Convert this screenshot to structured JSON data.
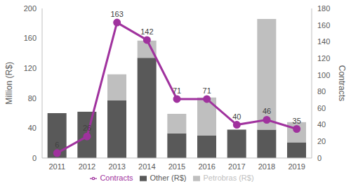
{
  "chart_data": {
    "type": "bar",
    "categories": [
      "2011",
      "2012",
      "2013",
      "2014",
      "2015",
      "2016",
      "2017",
      "2018",
      "2019"
    ],
    "series": [
      {
        "name": "Other (R$)",
        "type": "bar",
        "color": "#595959",
        "values": [
          60,
          62,
          77,
          134,
          33,
          30,
          38,
          38,
          21
        ]
      },
      {
        "name": "Petrobras (R$)",
        "type": "bar",
        "color": "#bfbfbf",
        "values": [
          0,
          0,
          35,
          23,
          26,
          51,
          0,
          148,
          27
        ]
      },
      {
        "name": "Contracts",
        "type": "line",
        "axis": "y2",
        "color": "#a0329e",
        "marker": "circle",
        "data_labels": true,
        "values": [
          6,
          26,
          163,
          142,
          71,
          71,
          40,
          46,
          35
        ]
      }
    ],
    "y_label": "Million (R$)",
    "y2_label": "Contracts",
    "ylim": [
      0,
      200
    ],
    "yticks": [
      0,
      40,
      80,
      120,
      160,
      200
    ],
    "y2lim": [
      0,
      180
    ],
    "y2ticks": [
      0,
      20,
      40,
      60,
      80,
      100,
      120,
      140,
      160,
      180
    ],
    "stacked": true,
    "grid": false,
    "legend": "bottom"
  }
}
